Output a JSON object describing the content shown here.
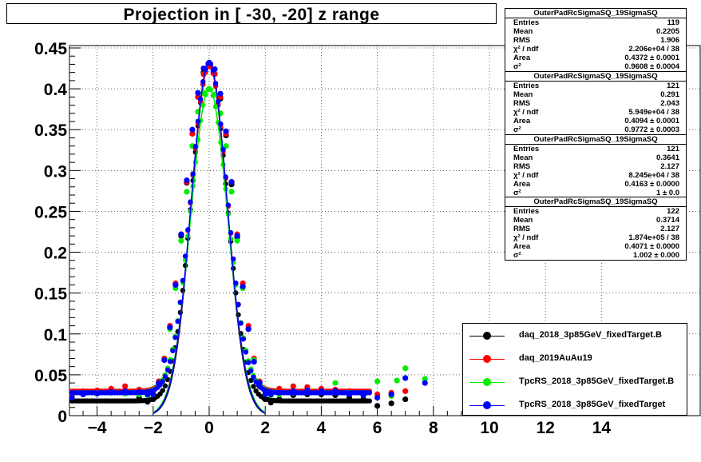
{
  "title": "Projection in [ -30, -20] z range",
  "colors": {
    "black": "#000000",
    "red": "#ff0000",
    "green": "#00ee00",
    "blue": "#0000ff"
  },
  "stats": [
    {
      "title": "OuterPadRcSigmaSQ_19SigmaSQ",
      "entries": "119",
      "mean": "0.2205",
      "rms": "1.906",
      "chi2": "2.206e+04 / 38",
      "area": "0.4372 ± 0.0001",
      "sigma2": "0.9608 ± 0.0004"
    },
    {
      "title": "OuterPadRcSigmaSQ_19SigmaSQ",
      "entries": "121",
      "mean": "0.291",
      "rms": "2.043",
      "chi2": "5.949e+04 / 38",
      "area": "0.4094 ± 0.0001",
      "sigma2": "0.9772 ± 0.0003"
    },
    {
      "title": "OuterPadRcSigmaSQ_19SigmaSQ",
      "entries": "121",
      "mean": "0.3641",
      "rms": "2.127",
      "chi2": "8.245e+04 / 38",
      "area": "0.4163 ± 0.0000",
      "sigma2": "1 ± 0.0"
    },
    {
      "title": "OuterPadRcSigmaSQ_19SigmaSQ",
      "entries": "122",
      "mean": "0.3714",
      "rms": "2.127",
      "chi2": "1.874e+05 / 38",
      "area": "0.4071 ± 0.0000",
      "sigma2": "1.002 ± 0.000"
    }
  ],
  "stat_keys": {
    "entries": "Entries",
    "mean": "Mean",
    "rms": "RMS",
    "chi2": "χ² / ndf",
    "area": "Area",
    "sigma2": "σ²"
  },
  "chart_data": {
    "type": "scatter",
    "title": "Projection in [ -30, -20] z range",
    "xlim": [
      -5,
      17
    ],
    "ylim": [
      0,
      0.45
    ],
    "x_ticks": [
      -4,
      -2,
      0,
      2,
      4,
      6,
      8,
      10,
      12,
      14
    ],
    "y_ticks": [
      0,
      0.05,
      0.1,
      0.15,
      0.2,
      0.25,
      0.3,
      0.35,
      0.4,
      0.45
    ],
    "x_tick_labels": [
      "−4",
      "−2",
      "0",
      "2",
      "4",
      "6",
      "8",
      "10",
      "12",
      "14"
    ],
    "y_tick_labels": [
      "0",
      "0.05",
      "0.1",
      "0.15",
      "0.2",
      "0.25",
      "0.3",
      "0.35",
      "0.4",
      "0.45"
    ],
    "grid": true,
    "legend_placement": "bottom-right",
    "series": [
      {
        "name": "daq_2018_3p85GeV_fixedTarget.B",
        "color": "black",
        "peak": 0.43,
        "sigma": 0.63,
        "tail": 0.018,
        "fit": {
          "area": 0.4372,
          "sigma2": 0.9608
        },
        "x": [
          -4.9,
          -4.5,
          -4.0,
          -3.5,
          -3.0,
          -2.5,
          -2.2,
          -2.0,
          -1.8,
          -1.6,
          -1.4,
          -1.2,
          -1.0,
          -0.8,
          -0.6,
          -0.4,
          -0.2,
          0.0,
          0.2,
          0.4,
          0.6,
          0.8,
          1.0,
          1.2,
          1.4,
          1.6,
          1.8,
          2.0,
          2.2,
          2.5,
          3.0,
          3.5,
          4.0,
          4.5,
          5.0,
          5.5,
          6.0,
          6.5,
          7.0
        ],
        "y": [
          0.024,
          0.027,
          0.028,
          0.029,
          0.028,
          0.022,
          0.017,
          0.02,
          0.038,
          0.068,
          0.108,
          0.16,
          0.22,
          0.285,
          0.345,
          0.39,
          0.42,
          0.43,
          0.418,
          0.388,
          0.343,
          0.283,
          0.218,
          0.158,
          0.106,
          0.066,
          0.036,
          0.02,
          0.016,
          0.02,
          0.025,
          0.026,
          0.026,
          0.025,
          0.022,
          0.02,
          0.012,
          0.015,
          0.02
        ]
      },
      {
        "name": "daq_2019AuAu19",
        "color": "red",
        "peak": 0.428,
        "sigma": 0.64,
        "tail": 0.03,
        "fit": {
          "area": 0.4094,
          "sigma2": 0.9772
        },
        "x": [
          -4.9,
          -4.5,
          -4.0,
          -3.5,
          -3.0,
          -2.5,
          -2.2,
          -2.0,
          -1.8,
          -1.6,
          -1.4,
          -1.2,
          -1.0,
          -0.8,
          -0.6,
          -0.4,
          -0.2,
          0.0,
          0.2,
          0.4,
          0.6,
          0.8,
          1.0,
          1.2,
          1.4,
          1.6,
          1.8,
          2.0,
          2.2,
          2.5,
          3.0,
          3.5,
          4.0,
          4.5,
          5.0,
          5.5,
          6.0,
          6.5,
          7.0
        ],
        "y": [
          0.025,
          0.03,
          0.031,
          0.033,
          0.036,
          0.032,
          0.028,
          0.028,
          0.042,
          0.07,
          0.11,
          0.162,
          0.222,
          0.286,
          0.345,
          0.39,
          0.418,
          0.428,
          0.418,
          0.39,
          0.345,
          0.286,
          0.222,
          0.162,
          0.11,
          0.07,
          0.042,
          0.03,
          0.03,
          0.033,
          0.036,
          0.035,
          0.033,
          0.032,
          0.03,
          0.028,
          0.026,
          0.028,
          0.03
        ]
      },
      {
        "name": "TpcRS_2018_3p85GeV_fixedTarget.B",
        "color": "green",
        "peak": 0.4,
        "sigma": 0.66,
        "tail": 0.028,
        "fit": {
          "area": 0.4163,
          "sigma2": 1.0
        },
        "x": [
          -4.9,
          -4.5,
          -4.0,
          -3.5,
          -3.0,
          -2.5,
          -2.2,
          -2.0,
          -1.8,
          -1.6,
          -1.4,
          -1.2,
          -1.0,
          -0.8,
          -0.6,
          -0.4,
          -0.2,
          0.0,
          0.2,
          0.4,
          0.6,
          0.8,
          1.0,
          1.2,
          1.4,
          1.6,
          1.8,
          2.0,
          2.2,
          2.5,
          3.0,
          3.5,
          4.0,
          4.5,
          5.0,
          5.5,
          6.0,
          6.5,
          6.7,
          7.0,
          7.7
        ],
        "y": [
          0.022,
          0.026,
          0.027,
          0.028,
          0.027,
          0.026,
          0.025,
          0.026,
          0.04,
          0.068,
          0.106,
          0.156,
          0.214,
          0.274,
          0.33,
          0.372,
          0.395,
          0.4,
          0.393,
          0.37,
          0.33,
          0.274,
          0.214,
          0.156,
          0.106,
          0.068,
          0.04,
          0.026,
          0.025,
          0.026,
          0.028,
          0.03,
          0.03,
          0.04,
          0.028,
          0.025,
          0.042,
          0.024,
          0.043,
          0.058,
          0.045
        ]
      },
      {
        "name": "TpcRS_2018_3p85GeV_fixedTarget",
        "color": "blue",
        "peak": 0.432,
        "sigma": 0.64,
        "tail": 0.028,
        "fit": {
          "area": 0.4071,
          "sigma2": 1.002
        },
        "x": [
          -4.9,
          -4.5,
          -4.0,
          -3.5,
          -3.0,
          -2.5,
          -2.2,
          -2.0,
          -1.8,
          -1.6,
          -1.4,
          -1.2,
          -1.0,
          -0.8,
          -0.6,
          -0.4,
          -0.2,
          0.0,
          0.2,
          0.4,
          0.6,
          0.8,
          1.0,
          1.2,
          1.4,
          1.6,
          1.8,
          2.0,
          2.2,
          2.5,
          3.0,
          3.5,
          4.0,
          4.5,
          5.0,
          5.5,
          6.0,
          6.5,
          7.0,
          7.7
        ],
        "y": [
          0.022,
          0.026,
          0.027,
          0.029,
          0.03,
          0.029,
          0.026,
          0.026,
          0.04,
          0.068,
          0.108,
          0.16,
          0.222,
          0.288,
          0.35,
          0.395,
          0.425,
          0.432,
          0.424,
          0.394,
          0.348,
          0.286,
          0.22,
          0.158,
          0.106,
          0.066,
          0.04,
          0.026,
          0.026,
          0.028,
          0.03,
          0.031,
          0.03,
          0.03,
          0.026,
          0.025,
          0.022,
          0.026,
          0.046,
          0.04
        ]
      }
    ]
  }
}
